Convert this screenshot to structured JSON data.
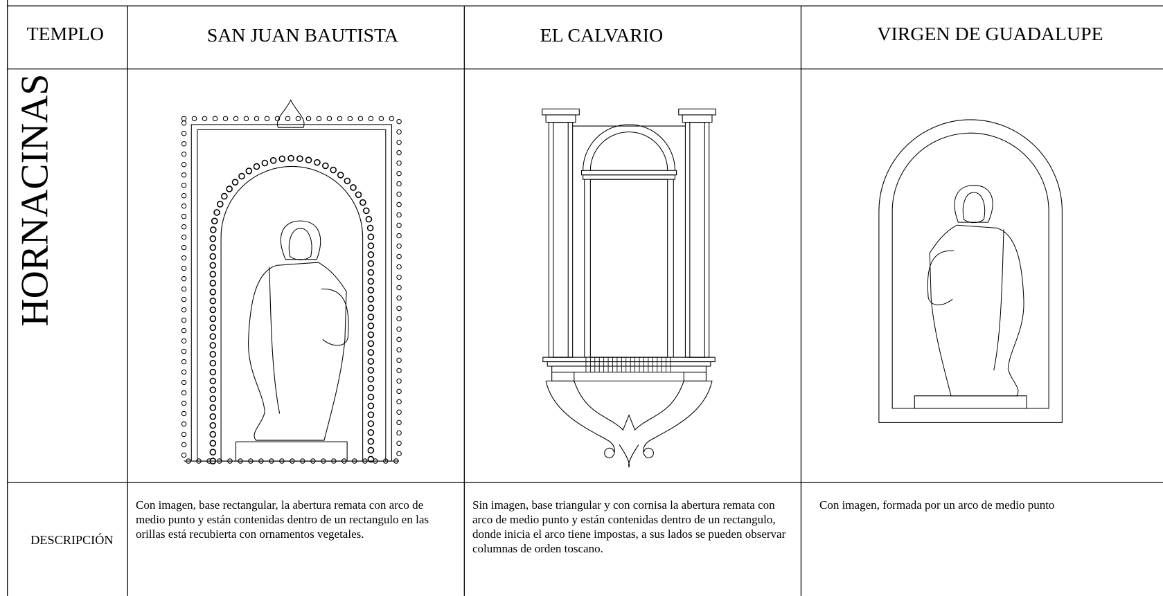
{
  "header": {
    "row_label": "TEMPLO",
    "columns": [
      "SAN JUAN BAUTISTA",
      "EL CALVARIO",
      "VIRGEN DE GUADALUPE"
    ]
  },
  "rows": {
    "images_label": "HORNACINAS",
    "description_label": "DESCRIPCIÓN",
    "descriptions": [
      "Con imagen, base rectangular, la abertura remata con arco de medio punto y están contenidas dentro de un rectangulo en las orillas está recubierta con ornamentos vegetales.",
      "Sin imagen, base triangular y con cornisa la abertura remata con arco de medio punto y están contenidas dentro de un rectangulo, donde inicia el arco tiene impostas, a sus lados se pueden observar columnas de orden toscano.",
      "Con imagen, formada por un arco de medio punto"
    ]
  }
}
